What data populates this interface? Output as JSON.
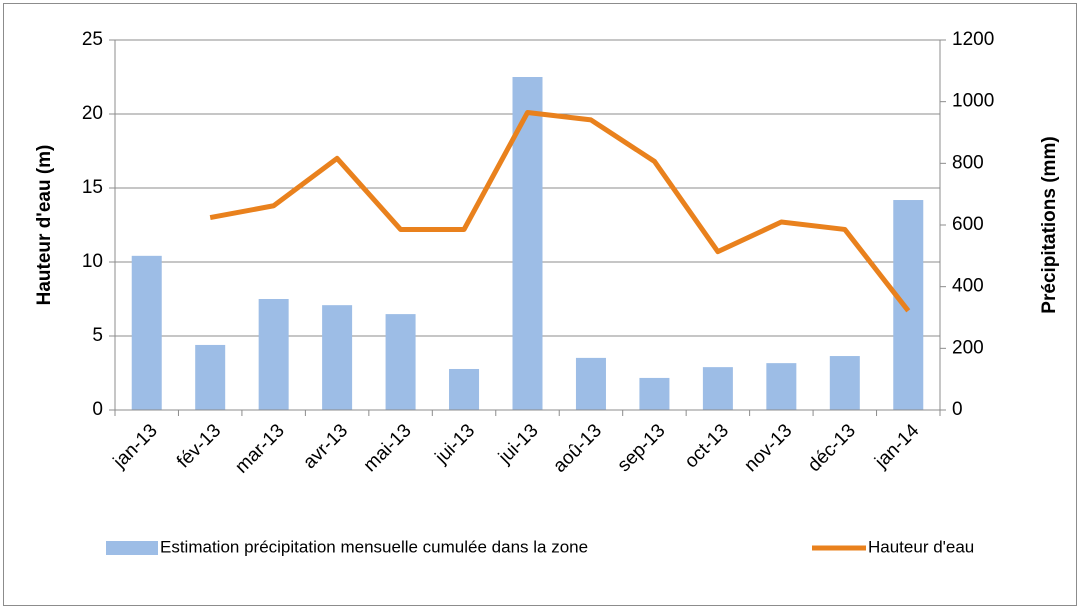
{
  "chart_data": {
    "type": "bar_line",
    "y_label": "Hauteur d'eau (m)",
    "y2_label": "Précipitations (mm)",
    "categories": [
      "jan-13",
      "fév-13",
      "mar-13",
      "avr-13",
      "mai-13",
      "jui-13",
      "jui-13",
      "aoû-13",
      "sep-13",
      "oct-13",
      "nov-13",
      "déc-13",
      "jan-14"
    ],
    "series": [
      {
        "name": "Estimation précipitation mensuelle cumulée dans la zone",
        "type": "bar",
        "axis": "y2",
        "color": "#9dbde6",
        "values": [
          500,
          211,
          360,
          340,
          311,
          133,
          1080,
          169,
          104,
          139,
          152,
          175,
          681
        ]
      },
      {
        "name": "Hauteur d'eau",
        "type": "line",
        "axis": "y",
        "color": "#e9811d",
        "values": [
          null,
          13.0,
          13.8,
          17.0,
          12.2,
          12.2,
          20.1,
          19.6,
          16.8,
          10.7,
          12.7,
          12.2,
          6.7
        ]
      }
    ],
    "ylim": [
      0,
      25
    ],
    "yticks": [
      0,
      5,
      10,
      15,
      20,
      25
    ],
    "y2lim": [
      0,
      1200
    ],
    "y2ticks": [
      0,
      200,
      400,
      600,
      800,
      1000,
      1200
    ],
    "grid": true,
    "legend": "bottom"
  }
}
